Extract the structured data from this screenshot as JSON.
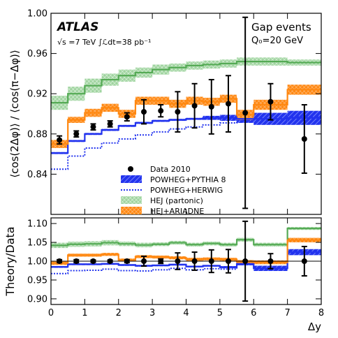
{
  "chart_data": [
    {
      "type": "line",
      "panel": "main",
      "ylabel": "⟨cos(2Δφ)⟩ / ⟨cos(π−Δφ)⟩",
      "xlim": [
        0,
        8
      ],
      "ylim": [
        0.8,
        1.0
      ],
      "yticks": [
        "0.84",
        "0.88",
        "0.92",
        "0.96",
        "1.00"
      ],
      "experiment": "ATLAS",
      "energy_label": "√s =7 TeV ∫ℒdt=38 pb⁻¹",
      "selection_title": "Gap events",
      "selection_cut": "Q₀=20 GeV",
      "bin_edges": [
        0,
        0.5,
        1,
        1.5,
        2,
        2.5,
        3,
        3.5,
        4,
        4.5,
        5,
        5.5,
        6,
        7,
        8
      ],
      "data": {
        "name": "Data 2010",
        "x": [
          0.25,
          0.75,
          1.25,
          1.75,
          2.25,
          2.75,
          3.25,
          3.75,
          4.25,
          4.75,
          5.25,
          5.75,
          6.5,
          7.5
        ],
        "y": [
          0.874,
          0.88,
          0.887,
          0.89,
          0.897,
          0.902,
          0.903,
          0.902,
          0.908,
          0.907,
          0.91,
          0.901,
          0.912,
          0.875
        ],
        "err": [
          0.004,
          0.003,
          0.003,
          0.003,
          0.004,
          0.012,
          0.006,
          0.02,
          0.022,
          0.027,
          0.028,
          0.095,
          0.018,
          0.034
        ]
      },
      "series": [
        {
          "name": "POWHEG+PYTHIA 8",
          "style": "band",
          "color": "#2233ee",
          "values": [
            0.861,
            0.873,
            0.88,
            0.884,
            0.888,
            0.891,
            0.893,
            0.894,
            0.895,
            0.896,
            0.896,
            0.895,
            0.895,
            0.896
          ],
          "band_half": [
            0.001,
            0.001,
            0.001,
            0.001,
            0.001,
            0.001,
            0.001,
            0.001,
            0.001,
            0.002,
            0.003,
            0.004,
            0.006,
            0.007
          ]
        },
        {
          "name": "POWHEG+HERWIG",
          "style": "dotted",
          "color": "#2233ee",
          "values": [
            0.845,
            0.858,
            0.866,
            0.871,
            0.875,
            0.879,
            0.882,
            0.885,
            0.887,
            0.889,
            0.891,
            0.893,
            0.895,
            0.897
          ]
        },
        {
          "name": "HEJ (partonic)",
          "style": "band",
          "color": "#55aa55",
          "values": [
            0.911,
            0.92,
            0.928,
            0.934,
            0.938,
            0.941,
            0.944,
            0.946,
            0.948,
            0.949,
            0.95,
            0.952,
            0.952,
            0.951
          ],
          "band_half": [
            0.007,
            0.007,
            0.007,
            0.006,
            0.006,
            0.005,
            0.005,
            0.004,
            0.004,
            0.004,
            0.004,
            0.004,
            0.004,
            0.003
          ]
        },
        {
          "name": "HEJ+ARIADNE",
          "style": "band",
          "color": "#ff8811",
          "values": [
            0.87,
            0.894,
            0.901,
            0.906,
            0.9,
            0.913,
            0.913,
            0.91,
            0.913,
            0.912,
            0.915,
            0.899,
            0.909,
            0.924
          ],
          "band_half": [
            0.004,
            0.003,
            0.004,
            0.004,
            0.004,
            0.004,
            0.004,
            0.004,
            0.004,
            0.004,
            0.004,
            0.005,
            0.005,
            0.005
          ]
        }
      ]
    },
    {
      "type": "line",
      "panel": "ratio",
      "ylabel": "Theory/Data",
      "xlabel": "Δy",
      "xlim": [
        0,
        8
      ],
      "ylim": [
        0.885,
        1.115
      ],
      "yticks": [
        "0.90",
        "0.95",
        "1.00",
        "1.05",
        "1.10"
      ],
      "xticks": [
        "0",
        "1",
        "2",
        "3",
        "4",
        "5",
        "6",
        "7",
        "8"
      ],
      "bin_edges": [
        0,
        0.5,
        1,
        1.5,
        2,
        2.5,
        3,
        3.5,
        4,
        4.5,
        5,
        5.5,
        6,
        7,
        8
      ],
      "data": {
        "x": [
          0.25,
          0.75,
          1.25,
          1.75,
          2.25,
          2.75,
          3.25,
          3.75,
          4.25,
          4.75,
          5.25,
          5.75,
          6.5,
          7.5
        ],
        "y": [
          1.0,
          1.0,
          1.0,
          1.0,
          1.0,
          1.0,
          1.0,
          1.0,
          1.0,
          1.0,
          1.0,
          1.0,
          1.0,
          1.0
        ],
        "err": [
          0.004,
          0.004,
          0.003,
          0.003,
          0.004,
          0.013,
          0.006,
          0.022,
          0.024,
          0.03,
          0.031,
          0.106,
          0.02,
          0.039
        ]
      },
      "series": [
        {
          "name": "POWHEG+PYTHIA 8",
          "style": "band",
          "color": "#2233ee",
          "values": [
            0.985,
            0.992,
            0.992,
            0.993,
            0.99,
            0.988,
            0.989,
            0.991,
            0.986,
            0.988,
            0.984,
            0.993,
            0.981,
            1.024
          ],
          "band_half": [
            0.002,
            0.002,
            0.002,
            0.002,
            0.002,
            0.002,
            0.002,
            0.002,
            0.002,
            0.002,
            0.003,
            0.004,
            0.007,
            0.008
          ]
        },
        {
          "name": "POWHEG+HERWIG",
          "style": "dotted",
          "color": "#2233ee",
          "values": [
            0.967,
            0.975,
            0.976,
            0.979,
            0.975,
            0.974,
            0.977,
            0.981,
            0.977,
            0.98,
            0.979,
            0.991,
            0.981,
            1.025
          ]
        },
        {
          "name": "HEJ (partonic)",
          "style": "band",
          "color": "#55aa55",
          "values": [
            1.042,
            1.045,
            1.046,
            1.049,
            1.046,
            1.043,
            1.045,
            1.049,
            1.044,
            1.047,
            1.044,
            1.057,
            1.044,
            1.087
          ],
          "band_half": [
            0.007,
            0.007,
            0.007,
            0.007,
            0.006,
            0.006,
            0.005,
            0.005,
            0.005,
            0.005,
            0.005,
            0.005,
            0.005,
            0.004
          ]
        },
        {
          "name": "HEJ+ARIADNE",
          "style": "band",
          "color": "#ff8811",
          "values": [
            0.995,
            1.016,
            1.016,
            1.018,
            1.003,
            1.012,
            1.011,
            1.009,
            1.005,
            1.006,
            1.005,
            0.998,
            0.997,
            1.056
          ],
          "band_half": [
            0.005,
            0.004,
            0.004,
            0.004,
            0.004,
            0.004,
            0.004,
            0.004,
            0.004,
            0.004,
            0.004,
            0.005,
            0.005,
            0.006
          ]
        }
      ]
    }
  ]
}
